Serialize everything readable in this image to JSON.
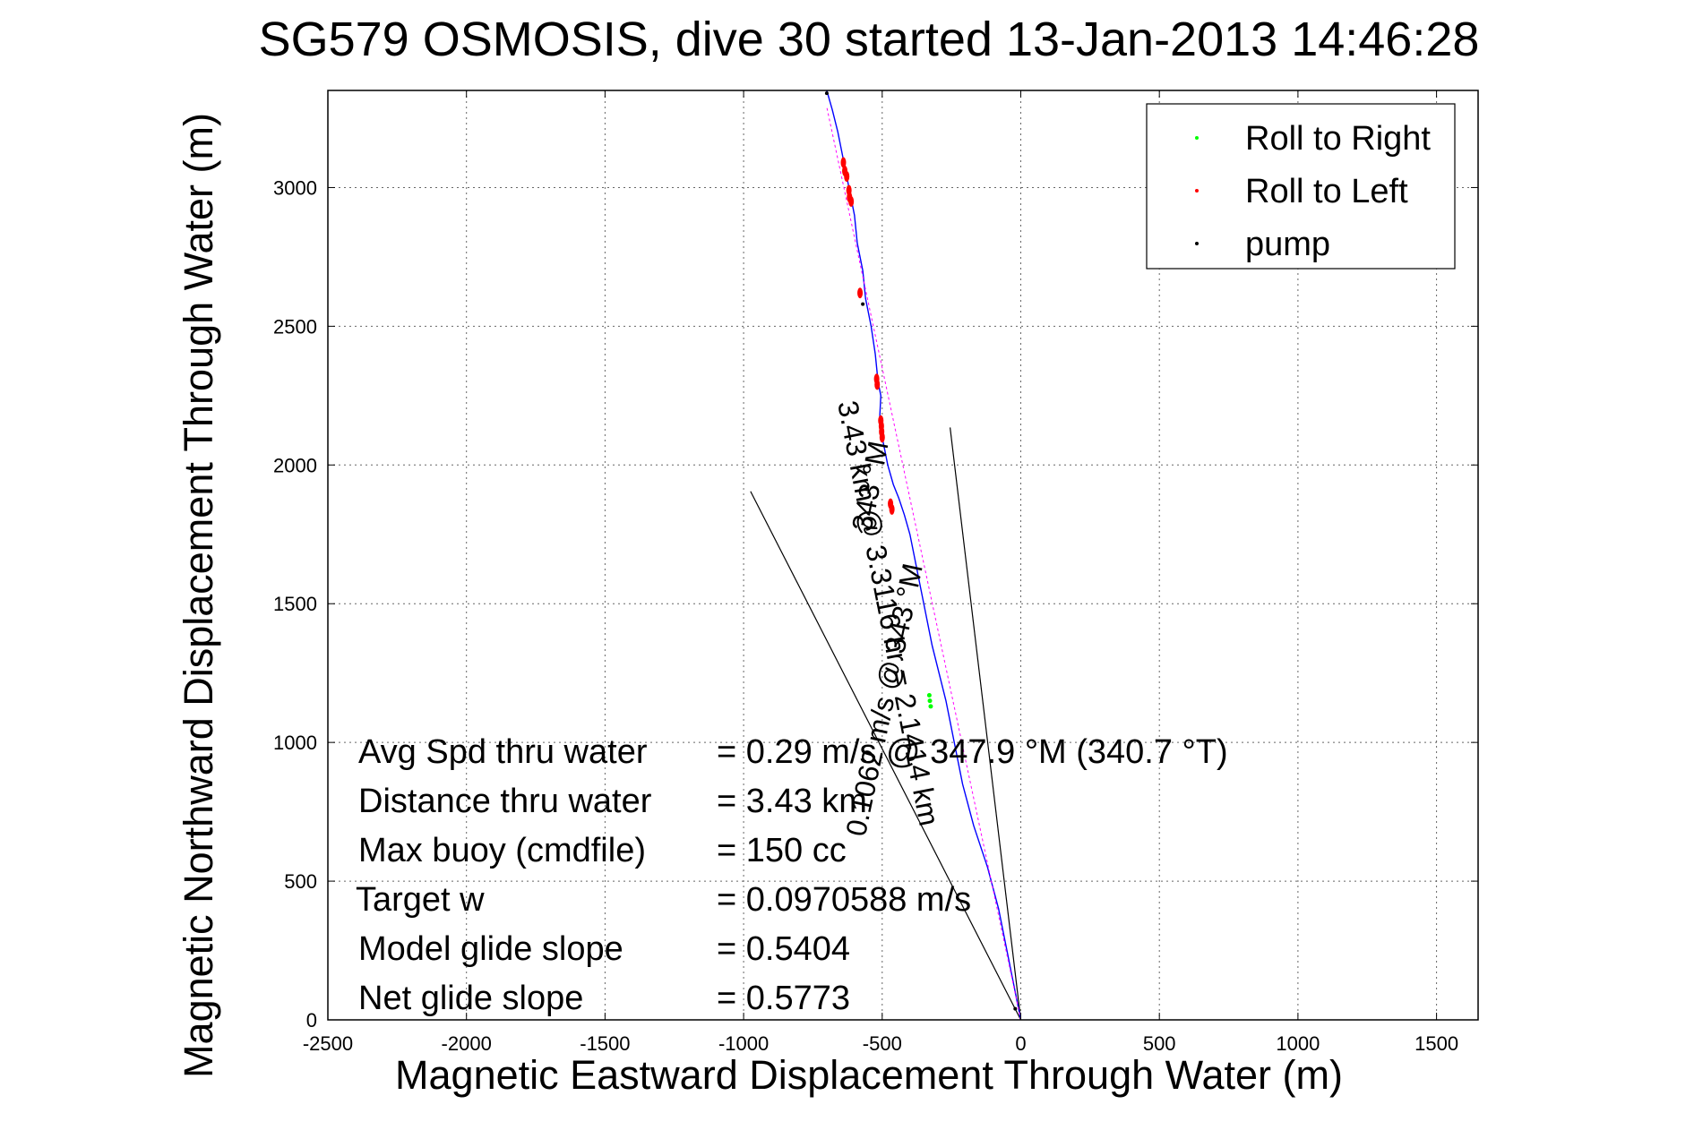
{
  "chart_data": {
    "type": "line",
    "title": "SG579 OSMOSIS, dive 30 started 13-Jan-2013 14:46:28",
    "xlabel": "Magnetic Eastward Displacement Through Water (m)",
    "ylabel": "Magnetic Northward Displacement Through Water (m)",
    "xlim": [
      -2500,
      1650
    ],
    "ylim": [
      0,
      3350
    ],
    "xticks": [
      -2500,
      -2000,
      -1500,
      -1000,
      -500,
      0,
      500,
      1000,
      1500
    ],
    "yticks": [
      0,
      500,
      1000,
      1500,
      2000,
      2500,
      3000
    ],
    "grid": true,
    "legend_position": "top-right",
    "colors": {
      "track": "#0000ff",
      "roll_right": "#00ff00",
      "roll_left": "#ff0000",
      "pump": "#000000",
      "heading": "#ff00ff",
      "guide": "#000000"
    },
    "legend": [
      {
        "key": "roll_right",
        "label": "Roll to Right"
      },
      {
        "key": "roll_left",
        "label": "Roll to Left"
      },
      {
        "key": "pump",
        "label": "pump"
      }
    ],
    "series": [
      {
        "key": "track",
        "x": [
          0,
          -40,
          -80,
          -120,
          -170,
          -210,
          -240,
          -270,
          -295,
          -320,
          -340,
          -360,
          -380,
          -400,
          -420,
          -440,
          -460,
          -480,
          -490,
          -500,
          -510,
          -505,
          -515,
          -520,
          -525,
          -540,
          -560,
          -570,
          -590,
          -600,
          -610,
          -620,
          -630,
          -640,
          -660,
          -680,
          -700
        ],
        "y": [
          0,
          200,
          400,
          550,
          700,
          850,
          1000,
          1150,
          1250,
          1350,
          1450,
          1550,
          1650,
          1750,
          1820,
          1880,
          1930,
          2000,
          2050,
          2100,
          2150,
          2250,
          2300,
          2350,
          2400,
          2500,
          2600,
          2700,
          2800,
          2900,
          2950,
          3000,
          3050,
          3100,
          3200,
          3280,
          3350
        ]
      },
      {
        "key": "heading",
        "x": [
          0,
          -700
        ],
        "y": [
          0,
          3290
        ]
      }
    ],
    "guide_lines": [
      {
        "x": [
          0,
          -975
        ],
        "y": [
          0,
          1905
        ]
      },
      {
        "x": [
          0,
          -255
        ],
        "y": [
          0,
          2135
        ]
      }
    ],
    "roll_left_points": [
      {
        "x": -640,
        "y": 3090
      },
      {
        "x": -635,
        "y": 3060
      },
      {
        "x": -628,
        "y": 3040
      },
      {
        "x": -620,
        "y": 2990
      },
      {
        "x": -618,
        "y": 2965
      },
      {
        "x": -612,
        "y": 2950
      },
      {
        "x": -580,
        "y": 2620
      },
      {
        "x": -520,
        "y": 2310
      },
      {
        "x": -518,
        "y": 2290
      },
      {
        "x": -505,
        "y": 2160
      },
      {
        "x": -503,
        "y": 2140
      },
      {
        "x": -502,
        "y": 2120
      },
      {
        "x": -500,
        "y": 2100
      },
      {
        "x": -470,
        "y": 1860
      },
      {
        "x": -465,
        "y": 1840
      }
    ],
    "roll_right_points": [
      {
        "x": -330,
        "y": 1170
      },
      {
        "x": -328,
        "y": 1150
      },
      {
        "x": -325,
        "y": 1130
      }
    ],
    "pump_points": [
      {
        "x": -700,
        "y": 3340
      },
      {
        "x": -570,
        "y": 2580
      },
      {
        "x": -20,
        "y": 40
      }
    ],
    "track_annotation": "3.43 km @ 3.3116 hr = 2.1414 km",
    "track_annotation_heading": "343 °M",
    "speed_annotation": "0.1062 m/s @ 343 °M",
    "stats": [
      {
        "label": "Avg Spd thru water",
        "value": "=  0.29 m/s @ 347.9 °M (340.7 °T)"
      },
      {
        "label": "Distance thru water",
        "value": "=  3.43 km"
      },
      {
        "label": "Max buoy (cmdfile)",
        "value": "= 150 cc"
      },
      {
        "label": "Target w",
        "value": "= 0.0970588 m/s"
      },
      {
        "label": "Model glide slope",
        "value": "= 0.5404"
      },
      {
        "label": "Net glide slope",
        "value": "= 0.5773"
      }
    ]
  }
}
